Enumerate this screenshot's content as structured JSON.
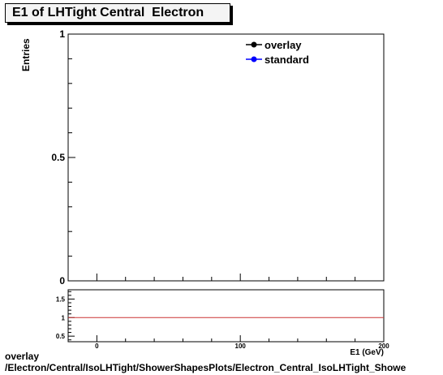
{
  "title": "E1 of LHTight Central  Electron",
  "footer": {
    "line1": "overlay",
    "line2": "/Electron/Central/IsoLHTight/ShowerShapesPlots/Electron_Central_IsoLHTight_Showe"
  },
  "colors": {
    "overlay": "#000000",
    "standard": "#0000ff",
    "ratio_line": "#cc3333"
  },
  "chart_data": [
    {
      "type": "line",
      "ylabel": "Entries",
      "xlim": [
        -20,
        200
      ],
      "ylim": [
        0,
        1
      ],
      "x_ticks": [],
      "y_ticks": [
        {
          "v": 0,
          "label": "0"
        },
        {
          "v": 0.5,
          "label": "0.5"
        },
        {
          "v": 1,
          "label": "1"
        }
      ],
      "legend": {
        "placement": "top-right",
        "entries": [
          {
            "name": "overlay",
            "color": "#000000"
          },
          {
            "name": "standard",
            "color": "#0000ff"
          }
        ]
      },
      "series": [
        {
          "name": "overlay",
          "values": []
        },
        {
          "name": "standard",
          "values": []
        }
      ]
    },
    {
      "type": "line",
      "xlabel": "E1 (GeV)",
      "xlim": [
        -20,
        200
      ],
      "ylim": [
        0.35,
        1.75
      ],
      "x_ticks": [
        {
          "v": 0,
          "label": "0"
        },
        {
          "v": 100,
          "label": "100"
        },
        {
          "v": 200,
          "label": "200"
        }
      ],
      "y_ticks": [
        {
          "v": 0.5,
          "label": "0.5"
        },
        {
          "v": 1,
          "label": "1"
        },
        {
          "v": 1.5,
          "label": "1.5"
        }
      ],
      "reference_line": 1
    }
  ]
}
